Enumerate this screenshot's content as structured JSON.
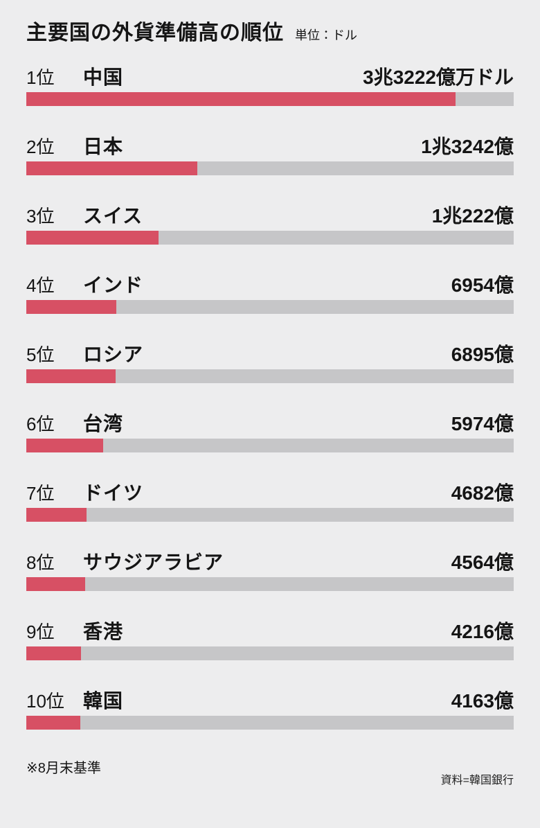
{
  "header": {
    "title": "主要国の外貨準備高の順位",
    "unit_label": "単位：ドル"
  },
  "footer": {
    "footnote": "※8月末基準",
    "source": "資料=韓国銀行"
  },
  "colors": {
    "background": "#ededee",
    "bar_fill": "#d75064",
    "bar_track": "#c6c6c8",
    "text": "#151515"
  },
  "chart_data": {
    "type": "bar",
    "orientation": "horizontal",
    "title": "主要国の外貨準備高の順位",
    "unit": "ドル",
    "value_unit_note": "values in 億ドル (hundred-million USD)",
    "max_value": 33222,
    "max_fill_percent": 88,
    "categories": [
      "中国",
      "日本",
      "スイス",
      "インド",
      "ロシア",
      "台湾",
      "ドイツ",
      "サウジアラビア",
      "香港",
      "韓国"
    ],
    "values": [
      33222,
      13242,
      10222,
      6954,
      6895,
      5974,
      4682,
      4564,
      4216,
      4163
    ],
    "rows": [
      {
        "rank": "1位",
        "country": "中国",
        "value": 33222,
        "value_label": "3兆3222億万ドル"
      },
      {
        "rank": "2位",
        "country": "日本",
        "value": 13242,
        "value_label": "1兆3242億"
      },
      {
        "rank": "3位",
        "country": "スイス",
        "value": 10222,
        "value_label": "1兆222億"
      },
      {
        "rank": "4位",
        "country": "インド",
        "value": 6954,
        "value_label": "6954億"
      },
      {
        "rank": "5位",
        "country": "ロシア",
        "value": 6895,
        "value_label": "6895億"
      },
      {
        "rank": "6位",
        "country": "台湾",
        "value": 5974,
        "value_label": "5974億"
      },
      {
        "rank": "7位",
        "country": "ドイツ",
        "value": 4682,
        "value_label": "4682億"
      },
      {
        "rank": "8位",
        "country": "サウジアラビア",
        "value": 4564,
        "value_label": "4564億"
      },
      {
        "rank": "9位",
        "country": "香港",
        "value": 4216,
        "value_label": "4216億"
      },
      {
        "rank": "10位",
        "country": "韓国",
        "value": 4163,
        "value_label": "4163億"
      }
    ]
  }
}
